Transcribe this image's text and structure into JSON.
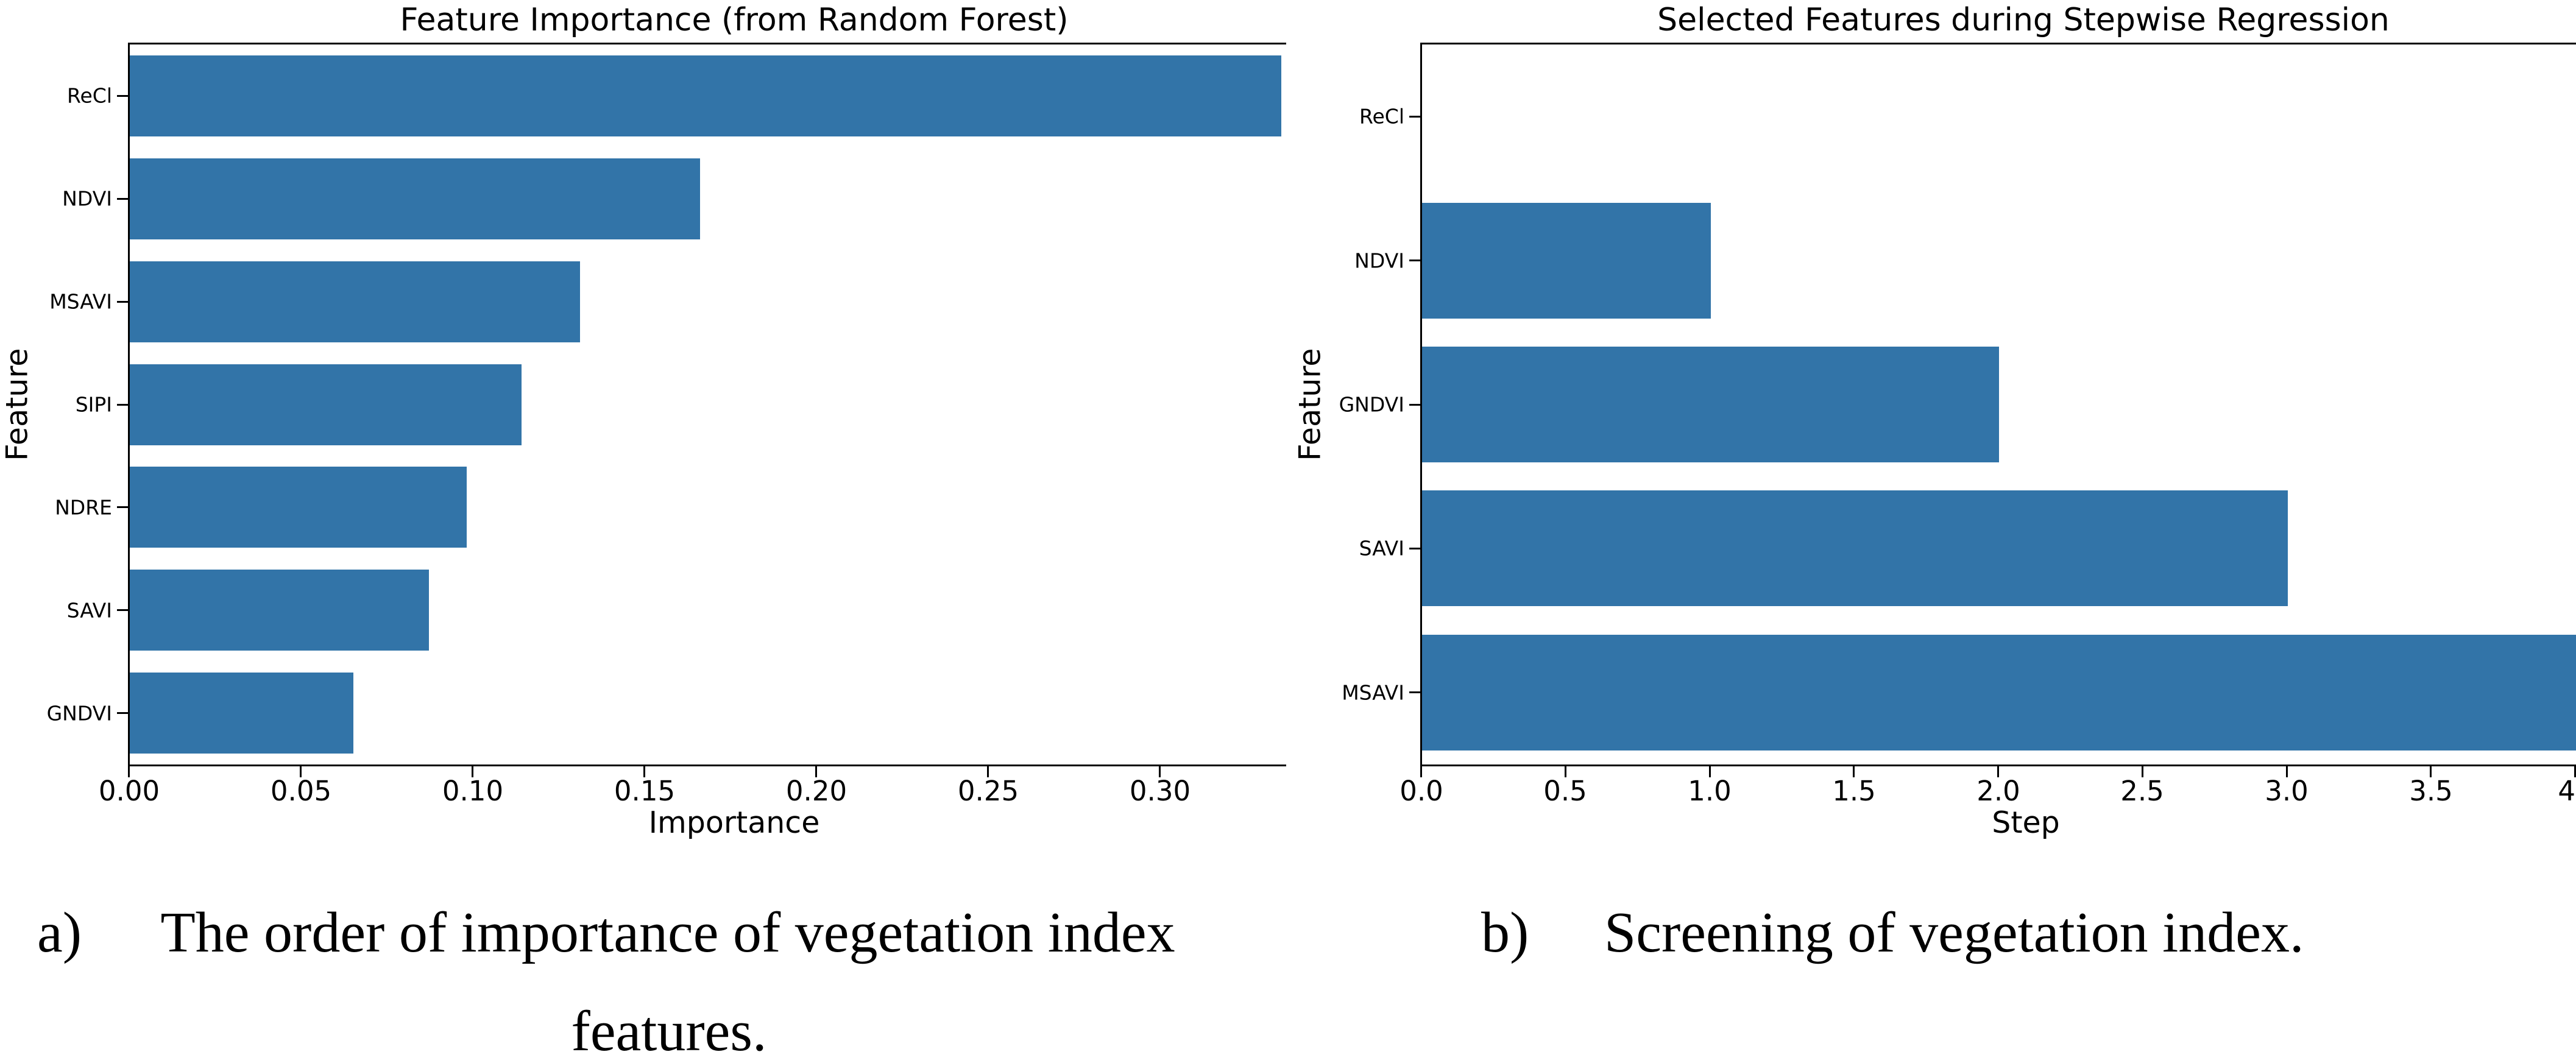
{
  "chart_data": [
    {
      "type": "bar",
      "orientation": "horizontal",
      "title": "Feature Importance (from Random Forest)",
      "xlabel": "Importance",
      "ylabel": "Feature",
      "categories": [
        "ReCl",
        "NDVI",
        "MSAVI",
        "SIPI",
        "NDRE",
        "SAVI",
        "GNDVI"
      ],
      "values": [
        0.335,
        0.166,
        0.131,
        0.114,
        0.098,
        0.087,
        0.065
      ],
      "xlim": [
        0,
        0.3365
      ],
      "xtick_vals": [
        0,
        0.05,
        0.1,
        0.15,
        0.2,
        0.25,
        0.3
      ],
      "xtick_labels": [
        "0.00",
        "0.05",
        "0.10",
        "0.15",
        "0.20",
        "0.25",
        "0.30"
      ],
      "grid": false,
      "legend_position": "none",
      "bar_color": "#3274a8"
    },
    {
      "type": "bar",
      "orientation": "horizontal",
      "title": "Selected Features during Stepwise Regression",
      "xlabel": "Step",
      "ylabel": "Feature",
      "categories": [
        "ReCl",
        "NDVI",
        "GNDVI",
        "SAVI",
        "MSAVI"
      ],
      "values": [
        0,
        1,
        2,
        3,
        4
      ],
      "xlim": [
        0,
        4
      ],
      "xtick_vals": [
        0,
        0.5,
        1,
        1.5,
        2,
        2.5,
        3,
        3.5,
        4
      ],
      "xtick_labels": [
        "0.0",
        "0.5",
        "1.0",
        "1.5",
        "2.0",
        "2.5",
        "3.0",
        "3.5",
        "4"
      ],
      "grid": false,
      "legend_position": "none",
      "bar_color": "#3274a8"
    }
  ],
  "captions": {
    "a": {
      "label": "a)",
      "line1": "The order of importance of vegetation index",
      "line2": "features."
    },
    "b": {
      "label": "b)",
      "line1": "Screening of vegetation index."
    }
  }
}
